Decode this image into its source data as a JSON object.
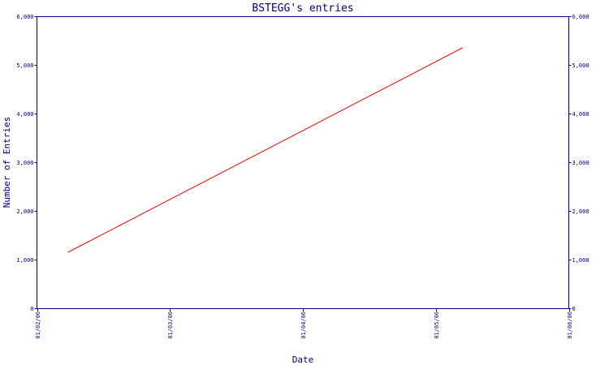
{
  "chart_data": {
    "type": "line",
    "title": "BSTEGG's entries",
    "xlabel": "Date",
    "ylabel": "Number of Entries",
    "x_tick_labels": [
      "01/02/06",
      "01/03/06",
      "01/04/06",
      "01/05/06",
      "01/06/06"
    ],
    "y_tick_labels": [
      "0",
      "1,000",
      "2,000",
      "3,000",
      "4,000",
      "5,000",
      "6,000"
    ],
    "y_ticks": [
      0,
      1000,
      2000,
      3000,
      4000,
      5000,
      6000
    ],
    "ylim": [
      0,
      6000
    ],
    "xlim": [
      "2006-02-01",
      "2006-06-01"
    ],
    "series": [
      {
        "color": "#ff0000",
        "points": [
          {
            "x": "2006-02-08",
            "y": 1150
          },
          {
            "x": "2006-05-08",
            "y": 5350
          }
        ]
      }
    ],
    "axis_color": "#000080",
    "title_color": "#000080",
    "grid": false,
    "secondary_y_axis": true
  }
}
